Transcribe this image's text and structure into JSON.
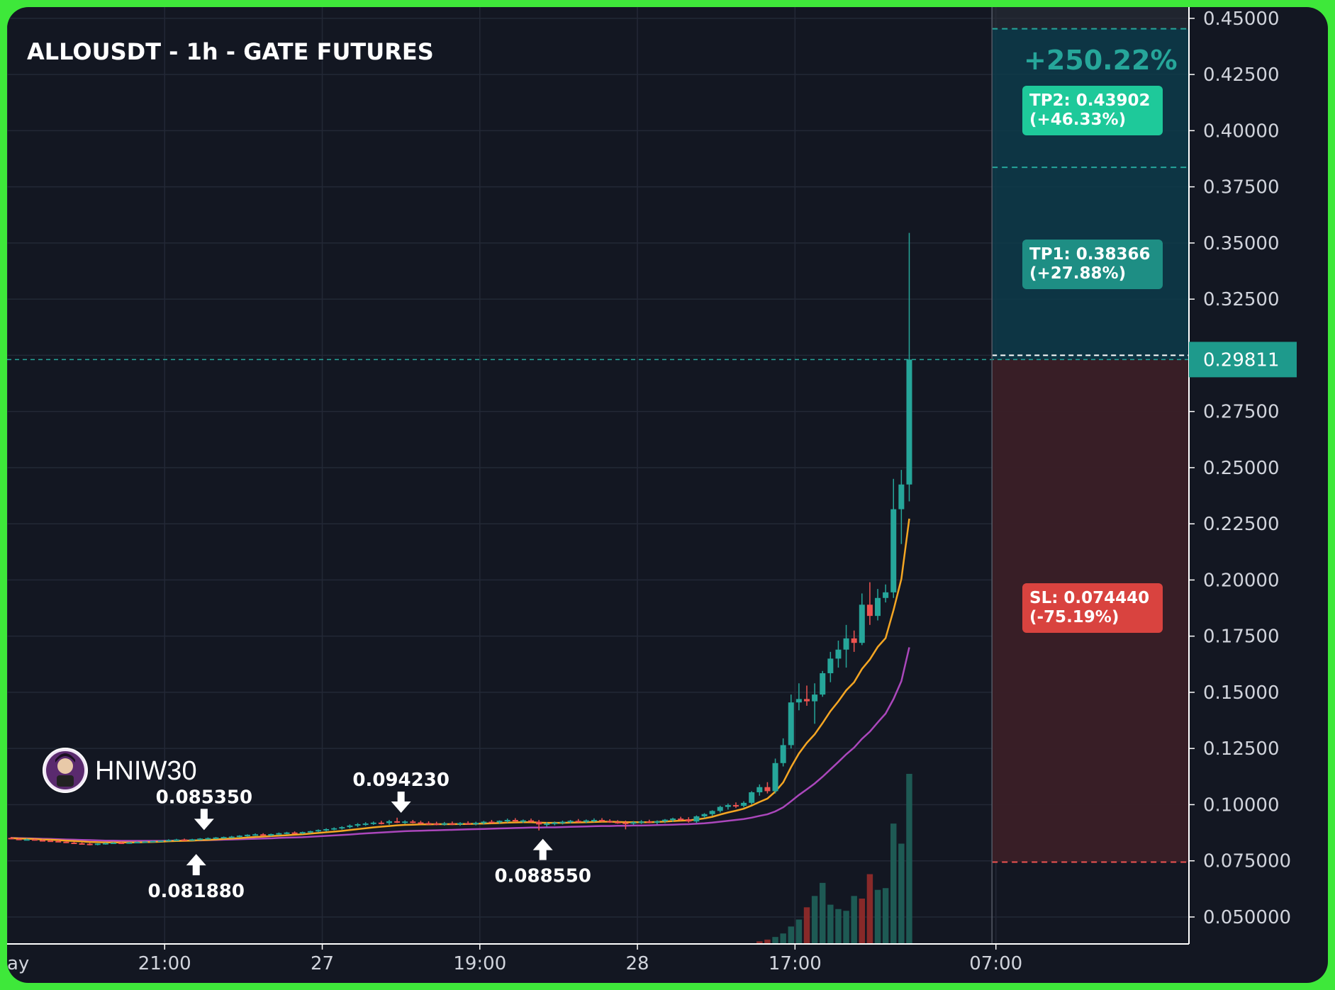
{
  "title": "ALLOUSDT - 1h - GATE FUTURES",
  "watermark": "HNIW30",
  "pnl_label": "+250.22%",
  "last_price": "0.29811",
  "tp2_label": [
    "TP2: 0.43902",
    "(+46.33%)"
  ],
  "tp1_label": [
    "TP1: 0.38366",
    "(+27.88%)"
  ],
  "sl_label": [
    "SL: 0.074440",
    "(-75.19%)"
  ],
  "annotations": [
    {
      "text": "0.085350",
      "arrow": "down",
      "x": 24.5,
      "price": 0.0855
    },
    {
      "text": "0.081880",
      "arrow": "up",
      "x": 23.5,
      "price": 0.0818
    },
    {
      "text": "0.094230",
      "arrow": "down",
      "x": 49.5,
      "price": 0.0932
    },
    {
      "text": "0.088550",
      "arrow": "up",
      "x": 67.5,
      "price": 0.0886
    }
  ],
  "colors": {
    "background": "#131722",
    "frame": "#3ee83a",
    "up": "#26a69a",
    "down": "#ef5350",
    "ema_fast": "#f5a623",
    "ema_slow": "#ab47bc",
    "tp_box": "#0d3b4a",
    "sl_box": "#3a1f27",
    "tp2_badge": "#1ec99a",
    "tp1_badge": "#1e8e84",
    "sl_badge": "#d9433f"
  },
  "chart_data": {
    "type": "candlestick",
    "timeframe": "1h",
    "ylim": [
      0.038,
      0.455
    ],
    "xlim": [
      0,
      150
    ],
    "y_ticks": [
      "0.45000",
      "0.42500",
      "0.40000",
      "0.37500",
      "0.35000",
      "0.32500",
      "0.30000",
      "0.27500",
      "0.25000",
      "0.22500",
      "0.20000",
      "0.17500",
      "0.15000",
      "0.12500",
      "0.10000",
      "0.075000",
      "0.050000"
    ],
    "x_ticks": [
      {
        "label": "ay",
        "x": 0
      },
      {
        "label": "21:00",
        "x": 20
      },
      {
        "label": "27",
        "x": 40
      },
      {
        "label": "19:00",
        "x": 60
      },
      {
        "label": "28",
        "x": 80
      },
      {
        "label": "17:00",
        "x": 100
      },
      {
        "label": "07:00",
        "x": 125.5
      }
    ],
    "position": {
      "entry": 0.29811,
      "tp1": 0.38366,
      "tp2": 0.43902,
      "sl": 0.07444,
      "start_x": 125,
      "end_x": 150
    },
    "candles_ohlc": [
      [
        0.0852,
        0.0856,
        0.0846,
        0.0848
      ],
      [
        0.0848,
        0.0851,
        0.0842,
        0.0845
      ],
      [
        0.0845,
        0.0849,
        0.0841,
        0.0846
      ],
      [
        0.0846,
        0.0848,
        0.084,
        0.0842
      ],
      [
        0.0842,
        0.0845,
        0.0838,
        0.084
      ],
      [
        0.084,
        0.0843,
        0.0836,
        0.0838
      ],
      [
        0.0838,
        0.0842,
        0.0833,
        0.0835
      ],
      [
        0.0835,
        0.0838,
        0.0829,
        0.0831
      ],
      [
        0.0831,
        0.0835,
        0.0826,
        0.0828
      ],
      [
        0.0828,
        0.0832,
        0.0823,
        0.0826
      ],
      [
        0.0826,
        0.083,
        0.0819,
        0.0824
      ],
      [
        0.0824,
        0.0828,
        0.0819,
        0.0827
      ],
      [
        0.0827,
        0.0831,
        0.0822,
        0.0829
      ],
      [
        0.0829,
        0.0833,
        0.0825,
        0.0831
      ],
      [
        0.0831,
        0.0834,
        0.0827,
        0.083
      ],
      [
        0.083,
        0.0834,
        0.0826,
        0.0832
      ],
      [
        0.0832,
        0.0836,
        0.0828,
        0.0834
      ],
      [
        0.0834,
        0.0838,
        0.083,
        0.0836
      ],
      [
        0.0836,
        0.084,
        0.0832,
        0.0838
      ],
      [
        0.0838,
        0.0842,
        0.0834,
        0.084
      ],
      [
        0.084,
        0.0846,
        0.0836,
        0.0843
      ],
      [
        0.0843,
        0.0848,
        0.0838,
        0.0845
      ],
      [
        0.0845,
        0.0849,
        0.084,
        0.0843
      ],
      [
        0.0843,
        0.0848,
        0.0839,
        0.0846
      ],
      [
        0.0846,
        0.0851,
        0.0842,
        0.0849
      ],
      [
        0.0849,
        0.0854,
        0.0845,
        0.0851
      ],
      [
        0.0851,
        0.0856,
        0.0847,
        0.0854
      ],
      [
        0.0854,
        0.0858,
        0.0849,
        0.0856
      ],
      [
        0.0856,
        0.0861,
        0.0851,
        0.0858
      ],
      [
        0.0858,
        0.0864,
        0.0854,
        0.0862
      ],
      [
        0.0862,
        0.0868,
        0.0857,
        0.0866
      ],
      [
        0.0866,
        0.0872,
        0.0861,
        0.0868
      ],
      [
        0.0868,
        0.0873,
        0.0862,
        0.0865
      ],
      [
        0.0865,
        0.0871,
        0.086,
        0.0869
      ],
      [
        0.0869,
        0.0876,
        0.0864,
        0.0873
      ],
      [
        0.0873,
        0.0879,
        0.0868,
        0.0876
      ],
      [
        0.0876,
        0.0881,
        0.0871,
        0.0874
      ],
      [
        0.0874,
        0.088,
        0.0869,
        0.0878
      ],
      [
        0.0878,
        0.0884,
        0.0873,
        0.0882
      ],
      [
        0.0882,
        0.089,
        0.0877,
        0.0887
      ],
      [
        0.0887,
        0.0895,
        0.0881,
        0.0891
      ],
      [
        0.0891,
        0.0899,
        0.0886,
        0.0895
      ],
      [
        0.0895,
        0.0904,
        0.0889,
        0.09
      ],
      [
        0.09,
        0.0912,
        0.0894,
        0.0907
      ],
      [
        0.0907,
        0.0918,
        0.09,
        0.0913
      ],
      [
        0.0913,
        0.0922,
        0.0906,
        0.0916
      ],
      [
        0.0916,
        0.0925,
        0.091,
        0.092
      ],
      [
        0.092,
        0.0928,
        0.0912,
        0.0918
      ],
      [
        0.0918,
        0.0932,
        0.091,
        0.0926
      ],
      [
        0.0926,
        0.0942,
        0.0918,
        0.0922
      ],
      [
        0.0922,
        0.093,
        0.0914,
        0.0925
      ],
      [
        0.0925,
        0.0932,
        0.0917,
        0.0921
      ],
      [
        0.0921,
        0.0928,
        0.0913,
        0.0918
      ],
      [
        0.0918,
        0.0926,
        0.091,
        0.0916
      ],
      [
        0.0916,
        0.0924,
        0.0908,
        0.0915
      ],
      [
        0.0915,
        0.0923,
        0.0907,
        0.0917
      ],
      [
        0.0917,
        0.0925,
        0.0909,
        0.0914
      ],
      [
        0.0914,
        0.0922,
        0.0906,
        0.0918
      ],
      [
        0.0918,
        0.0926,
        0.091,
        0.0915
      ],
      [
        0.0915,
        0.0924,
        0.0908,
        0.0919
      ],
      [
        0.0919,
        0.0928,
        0.0911,
        0.0924
      ],
      [
        0.0924,
        0.0932,
        0.0916,
        0.0921
      ],
      [
        0.0921,
        0.093,
        0.0914,
        0.0928
      ],
      [
        0.0928,
        0.0938,
        0.092,
        0.0932
      ],
      [
        0.0932,
        0.094,
        0.0922,
        0.0926
      ],
      [
        0.0926,
        0.0934,
        0.0918,
        0.093
      ],
      [
        0.093,
        0.0938,
        0.0921,
        0.0924
      ],
      [
        0.0924,
        0.0932,
        0.0885,
        0.0912
      ],
      [
        0.0912,
        0.0922,
        0.0902,
        0.0916
      ],
      [
        0.0916,
        0.0925,
        0.0908,
        0.092
      ],
      [
        0.092,
        0.0929,
        0.0912,
        0.0924
      ],
      [
        0.0924,
        0.0932,
        0.0916,
        0.0928
      ],
      [
        0.0928,
        0.0936,
        0.092,
        0.0925
      ],
      [
        0.0925,
        0.0934,
        0.0917,
        0.093
      ],
      [
        0.093,
        0.0939,
        0.0922,
        0.0932
      ],
      [
        0.0932,
        0.094,
        0.0923,
        0.0927
      ],
      [
        0.0927,
        0.0935,
        0.0919,
        0.0923
      ],
      [
        0.0923,
        0.0931,
        0.0915,
        0.092
      ],
      [
        0.092,
        0.0929,
        0.089,
        0.0918
      ],
      [
        0.0918,
        0.0927,
        0.091,
        0.0922
      ],
      [
        0.0922,
        0.0931,
        0.0914,
        0.0925
      ],
      [
        0.0925,
        0.0933,
        0.0917,
        0.0921
      ],
      [
        0.0921,
        0.093,
        0.0913,
        0.0926
      ],
      [
        0.0926,
        0.0936,
        0.0918,
        0.0933
      ],
      [
        0.0933,
        0.0942,
        0.0924,
        0.0938
      ],
      [
        0.0938,
        0.0946,
        0.0929,
        0.0935
      ],
      [
        0.0935,
        0.0944,
        0.092,
        0.0925
      ],
      [
        0.0925,
        0.0952,
        0.0918,
        0.0948
      ],
      [
        0.0948,
        0.0962,
        0.094,
        0.0958
      ],
      [
        0.0958,
        0.0975,
        0.095,
        0.0972
      ],
      [
        0.0972,
        0.0995,
        0.0965,
        0.099
      ],
      [
        0.099,
        0.1005,
        0.0978,
        0.0998
      ],
      [
        0.0998,
        0.101,
        0.0985,
        0.0995
      ],
      [
        0.0995,
        0.1015,
        0.0988,
        0.1008
      ],
      [
        0.1008,
        0.106,
        0.1,
        0.1055
      ],
      [
        0.1055,
        0.109,
        0.104,
        0.1078
      ],
      [
        0.1078,
        0.11,
        0.105,
        0.106
      ],
      [
        0.106,
        0.1205,
        0.105,
        0.1185
      ],
      [
        0.1185,
        0.1295,
        0.117,
        0.1265
      ],
      [
        0.1265,
        0.149,
        0.125,
        0.1455
      ],
      [
        0.1455,
        0.154,
        0.142,
        0.147
      ],
      [
        0.147,
        0.153,
        0.144,
        0.146
      ],
      [
        0.146,
        0.154,
        0.136,
        0.149
      ],
      [
        0.149,
        0.1595,
        0.148,
        0.1585
      ],
      [
        0.1585,
        0.168,
        0.1545,
        0.165
      ],
      [
        0.165,
        0.173,
        0.161,
        0.169
      ],
      [
        0.169,
        0.18,
        0.161,
        0.174
      ],
      [
        0.174,
        0.1775,
        0.168,
        0.172
      ],
      [
        0.172,
        0.194,
        0.171,
        0.189
      ],
      [
        0.189,
        0.199,
        0.18,
        0.184
      ],
      [
        0.184,
        0.196,
        0.182,
        0.192
      ],
      [
        0.192,
        0.198,
        0.19,
        0.1945
      ],
      [
        0.1945,
        0.245,
        0.192,
        0.2315
      ],
      [
        0.2315,
        0.249,
        0.216,
        0.2425
      ],
      [
        0.2425,
        0.3545,
        0.235,
        0.2981
      ]
    ],
    "ema_fast": [
      0.0851,
      0.0849,
      0.0848,
      0.0847,
      0.0845,
      0.0844,
      0.0842,
      0.084,
      0.0838,
      0.0836,
      0.0834,
      0.0833,
      0.0832,
      0.0832,
      0.0832,
      0.0832,
      0.0832,
      0.0833,
      0.0834,
      0.0835,
      0.0837,
      0.0838,
      0.0839,
      0.084,
      0.0842,
      0.0843,
      0.0845,
      0.0847,
      0.0849,
      0.0851,
      0.0854,
      0.0856,
      0.0858,
      0.086,
      0.0862,
      0.0864,
      0.0866,
      0.0868,
      0.0871,
      0.0874,
      0.0877,
      0.088,
      0.0883,
      0.0887,
      0.0891,
      0.0895,
      0.0899,
      0.0902,
      0.0905,
      0.0908,
      0.091,
      0.0911,
      0.0912,
      0.0912,
      0.0913,
      0.0913,
      0.0913,
      0.0914,
      0.0914,
      0.0915,
      0.0916,
      0.0917,
      0.0918,
      0.092,
      0.0921,
      0.0922,
      0.0922,
      0.092,
      0.0919,
      0.0919,
      0.0919,
      0.092,
      0.0921,
      0.0922,
      0.0923,
      0.0924,
      0.0924,
      0.0923,
      0.0922,
      0.0922,
      0.0922,
      0.0922,
      0.0923,
      0.0925,
      0.0927,
      0.0929,
      0.093,
      0.0934,
      0.0939,
      0.0946,
      0.0956,
      0.0965,
      0.0973,
      0.0982,
      0.0996,
      0.1012,
      0.1027,
      0.1058,
      0.1099,
      0.1167,
      0.1228,
      0.1275,
      0.1313,
      0.1363,
      0.1416,
      0.146,
      0.1509,
      0.1545,
      0.1604,
      0.1646,
      0.1702,
      0.1741,
      0.1866,
      0.2005,
      0.2273
    ],
    "ema_slow": [
      0.0852,
      0.0851,
      0.085,
      0.0849,
      0.0848,
      0.0847,
      0.0846,
      0.0845,
      0.0844,
      0.0843,
      0.0842,
      0.0841,
      0.084,
      0.084,
      0.0839,
      0.0839,
      0.0839,
      0.0839,
      0.0839,
      0.0839,
      0.084,
      0.084,
      0.084,
      0.0841,
      0.0841,
      0.0842,
      0.0843,
      0.0844,
      0.0845,
      0.0846,
      0.0847,
      0.0848,
      0.0849,
      0.085,
      0.0852,
      0.0853,
      0.0854,
      0.0855,
      0.0857,
      0.0859,
      0.0861,
      0.0863,
      0.0865,
      0.0867,
      0.087,
      0.0872,
      0.0874,
      0.0876,
      0.0878,
      0.088,
      0.0882,
      0.0883,
      0.0884,
      0.0885,
      0.0886,
      0.0887,
      0.0888,
      0.0889,
      0.089,
      0.0891,
      0.0892,
      0.0893,
      0.0894,
      0.0895,
      0.0896,
      0.0897,
      0.0898,
      0.0898,
      0.0899,
      0.0899,
      0.09,
      0.0901,
      0.0902,
      0.0903,
      0.0904,
      0.0905,
      0.0905,
      0.0906,
      0.0906,
      0.0907,
      0.0907,
      0.0908,
      0.0909,
      0.091,
      0.0911,
      0.0912,
      0.0913,
      0.0915,
      0.0917,
      0.092,
      0.0924,
      0.0928,
      0.0932,
      0.0936,
      0.0942,
      0.095,
      0.0957,
      0.097,
      0.0988,
      0.1015,
      0.1043,
      0.1068,
      0.1094,
      0.1124,
      0.1157,
      0.119,
      0.1224,
      0.1254,
      0.1293,
      0.1325,
      0.1366,
      0.1405,
      0.147,
      0.155,
      0.17
    ],
    "volume": [
      0,
      0,
      0,
      0,
      0,
      0,
      0,
      0,
      0,
      0,
      0,
      0,
      0,
      0,
      0,
      0,
      0,
      0,
      0,
      0,
      0,
      0,
      0,
      0,
      0,
      0,
      0,
      0,
      0,
      0,
      0,
      0,
      0,
      0,
      0,
      0,
      0,
      0,
      0,
      0,
      0,
      0,
      0,
      0,
      0,
      0,
      0,
      0,
      0,
      0,
      0,
      0,
      0,
      0,
      0,
      0,
      0,
      0,
      0,
      0,
      0,
      0,
      0,
      0,
      0,
      0,
      0,
      0,
      0,
      0,
      0,
      0,
      0,
      0,
      0,
      0,
      0,
      0,
      0,
      0,
      0,
      0,
      0,
      0,
      0,
      0,
      0,
      0,
      0,
      0,
      0,
      0,
      0,
      0,
      0,
      0.03,
      0.05,
      0.08,
      0.12,
      0.2,
      0.28,
      0.42,
      0.55,
      0.7,
      0.45,
      0.4,
      0.38,
      0.55,
      0.52,
      0.8,
      0.62,
      0.64,
      1.38,
      1.15,
      1.95
    ],
    "volume_colors_down": [
      95,
      96,
      101,
      108,
      109
    ]
  }
}
